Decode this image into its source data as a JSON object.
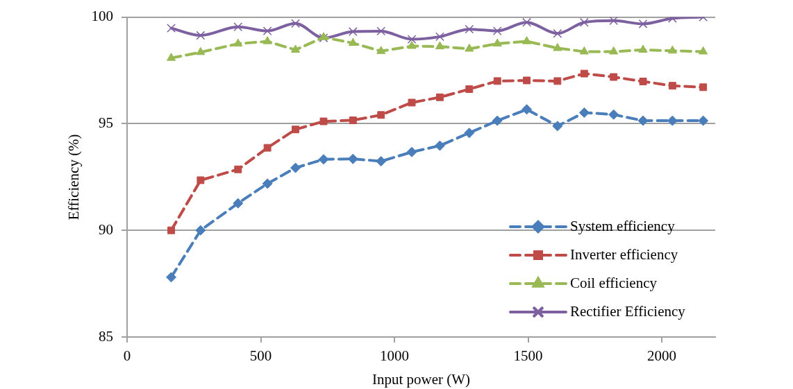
{
  "chart_data": {
    "type": "line",
    "xlabel": "Input power (W)",
    "ylabel": "Efficiency (%)",
    "x": [
      165,
      275,
      415,
      525,
      630,
      735,
      845,
      950,
      1065,
      1170,
      1280,
      1385,
      1495,
      1610,
      1710,
      1820,
      1930,
      2040,
      2155
    ],
    "xlim": [
      0,
      2200
    ],
    "xticks": [
      0,
      500,
      1000,
      1500,
      2000
    ],
    "ylim": [
      85,
      100
    ],
    "yticks": [
      85,
      90,
      95,
      100
    ],
    "grid": "y",
    "legend": "bottom right",
    "series": [
      {
        "name": "System efficiency",
        "color": "#4a7ebb",
        "marker": "diamond",
        "line_style": "dashed",
        "values": [
          87.8,
          90.0,
          91.27,
          92.19,
          92.93,
          93.33,
          93.35,
          93.24,
          93.67,
          93.97,
          94.57,
          95.14,
          95.67,
          94.89,
          95.52,
          95.43,
          95.14,
          95.14,
          95.14
        ]
      },
      {
        "name": "Inverter efficiency",
        "color": "#be4b48",
        "marker": "square",
        "line_style": "dashed",
        "values": [
          90.0,
          92.35,
          92.86,
          93.87,
          94.73,
          95.11,
          95.16,
          95.41,
          95.99,
          96.24,
          96.62,
          97.0,
          97.03,
          97.0,
          97.35,
          97.19,
          96.98,
          96.78,
          96.71
        ]
      },
      {
        "name": "Coil efficiency",
        "color": "#98b954",
        "marker": "triangle",
        "line_style": "dashed",
        "values": [
          98.08,
          98.35,
          98.75,
          98.86,
          98.46,
          99.05,
          98.78,
          98.4,
          98.64,
          98.62,
          98.51,
          98.75,
          98.86,
          98.54,
          98.38,
          98.38,
          98.46,
          98.42,
          98.38
        ]
      },
      {
        "name": "Rectifier Efficiency",
        "color": "#7d60a0",
        "marker": "cross",
        "line_style": "solid",
        "values": [
          99.48,
          99.14,
          99.54,
          99.35,
          99.7,
          99.02,
          99.32,
          99.34,
          98.96,
          99.08,
          99.43,
          99.35,
          99.75,
          99.23,
          99.75,
          99.83,
          99.68,
          99.94,
          100.0
        ]
      }
    ]
  }
}
